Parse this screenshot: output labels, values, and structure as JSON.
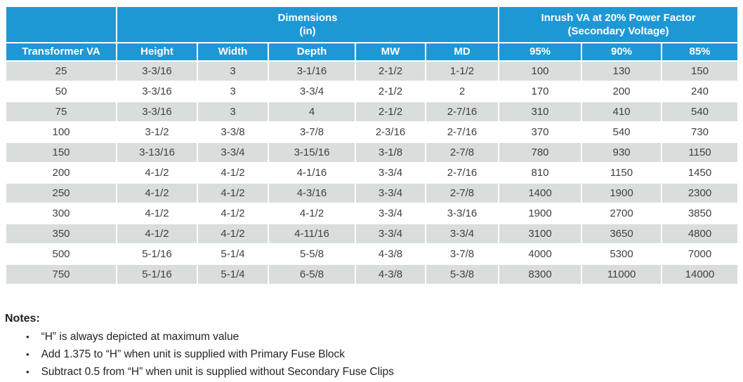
{
  "colors": {
    "header_blue": "#1E98D5",
    "row_stripe_gray": "#D9DDDC",
    "cell_text": "#414042",
    "notes_text": "#231F20"
  },
  "table": {
    "group_header": {
      "corner_label": "",
      "dimensions_line1": "Dimensions",
      "dimensions_line2": "(in)",
      "inrush_line1": "Inrush VA at 20% Power Factor",
      "inrush_line2": "(Secondary Voltage)"
    },
    "column_headers": [
      "Transformer VA",
      "Height",
      "Width",
      "Depth",
      "MW",
      "MD",
      "95%",
      "90%",
      "85%"
    ],
    "rows": [
      [
        "25",
        "3-3/16",
        "3",
        "3-1/16",
        "2-1/2",
        "1-1/2",
        "100",
        "130",
        "150"
      ],
      [
        "50",
        "3-3/16",
        "3",
        "3-3/4",
        "2-1/2",
        "2",
        "170",
        "200",
        "240"
      ],
      [
        "75",
        "3-3/16",
        "3",
        "4",
        "2-1/2",
        "2-7/16",
        "310",
        "410",
        "540"
      ],
      [
        "100",
        "3-1/2",
        "3-3/8",
        "3-7/8",
        "2-3/16",
        "2-7/16",
        "370",
        "540",
        "730"
      ],
      [
        "150",
        "3-13/16",
        "3-3/4",
        "3-15/16",
        "3-1/8",
        "2-7/8",
        "780",
        "930",
        "1150"
      ],
      [
        "200",
        "4-1/2",
        "4-1/2",
        "4-1/16",
        "3-3/4",
        "2-7/16",
        "810",
        "1150",
        "1450"
      ],
      [
        "250",
        "4-1/2",
        "4-1/2",
        "4-3/16",
        "3-3/4",
        "2-7/8",
        "1400",
        "1900",
        "2300"
      ],
      [
        "300",
        "4-1/2",
        "4-1/2",
        "4-1/2",
        "3-3/4",
        "3-3/16",
        "1900",
        "2700",
        "3850"
      ],
      [
        "350",
        "4-1/2",
        "4-1/2",
        "4-11/16",
        "3-3/4",
        "3-3/4",
        "3100",
        "3650",
        "4800"
      ],
      [
        "500",
        "5-1/16",
        "5-1/4",
        "5-5/8",
        "4-3/8",
        "3-7/8",
        "4000",
        "5300",
        "7000"
      ],
      [
        "750",
        "5-1/16",
        "5-1/4",
        "6-5/8",
        "4-3/8",
        "5-3/8",
        "8300",
        "11000",
        "14000"
      ]
    ]
  },
  "notes": {
    "title": "Notes:",
    "items": [
      "“H” is always depicted at maximum value",
      "Add 1.375 to “H” when unit is supplied with Primary Fuse Block",
      "Subtract 0.5 from “H” when unit is supplied without Secondary Fuse Clips"
    ]
  }
}
